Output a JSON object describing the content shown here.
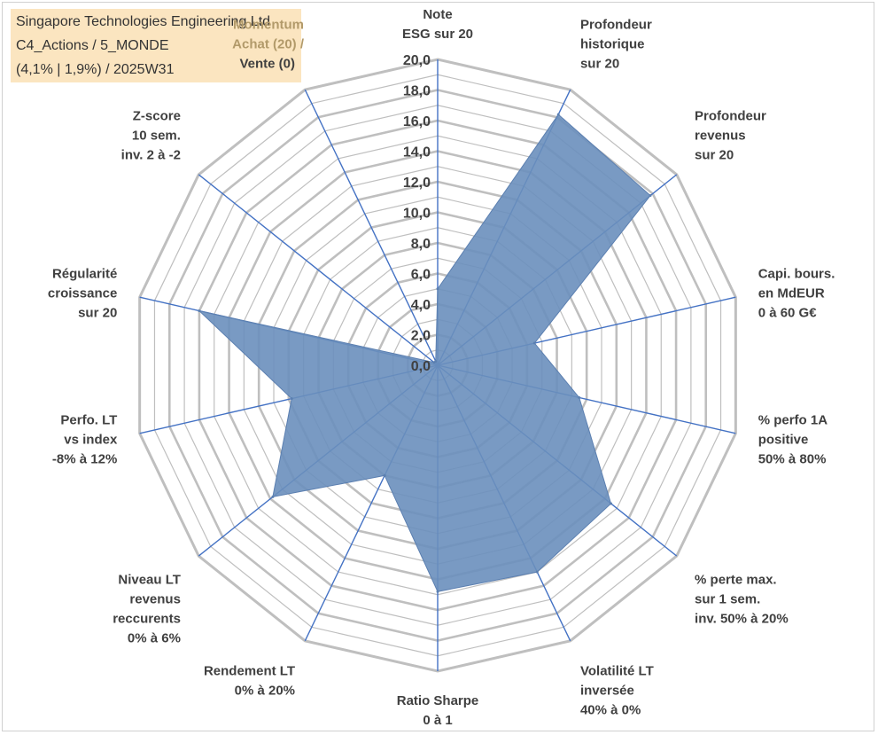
{
  "title_box": {
    "line1": "Singapore Technologies Engineering Ltd",
    "line2": "C4_Actions / 5_MONDE",
    "line3": "(4,1% | 1,9%) / 2025W31"
  },
  "chart_data": {
    "type": "radar",
    "title": "",
    "rmax": 20,
    "ticks": [
      "0,0",
      "2,0",
      "4,0",
      "6,0",
      "8,0",
      "10,0",
      "12,0",
      "14,0",
      "16,0",
      "18,0",
      "20,0"
    ],
    "tick_values": [
      0,
      2,
      4,
      6,
      8,
      10,
      12,
      14,
      16,
      18,
      20
    ],
    "grid": true,
    "fill_color": "#6a8fbd",
    "axis_color": "#4472c4",
    "grid_color": "#bfbfbf",
    "axes": [
      {
        "label": [
          "Note",
          "ESG sur 20"
        ],
        "value": 5.0
      },
      {
        "label": [
          "Profondeur",
          "historique",
          "sur 20"
        ],
        "value": 18.2
      },
      {
        "label": [
          "Profondeur",
          "revenus",
          "sur 20"
        ],
        "value": 17.8
      },
      {
        "label": [
          "Capi. bours.",
          "en MdEUR",
          "0 à 60 G€"
        ],
        "value": 6.5
      },
      {
        "label": [
          "% perfo 1A",
          "positive",
          "50% à 80%"
        ],
        "value": 9.5
      },
      {
        "label": [
          "% perte max.",
          "sur 1 sem.",
          "inv. 50% à 20%"
        ],
        "value": 14.5
      },
      {
        "label": [
          "Volatilité LT",
          "inversée",
          "40% à 0%"
        ],
        "value": 15.0
      },
      {
        "label": [
          "Ratio Sharpe",
          "0 à 1"
        ],
        "value": 14.8
      },
      {
        "label": [
          "Rendement LT",
          "0% à 20%"
        ],
        "value": 8.0
      },
      {
        "label": [
          "Niveau LT",
          "revenus",
          "reccurents",
          "0% à 6%"
        ],
        "value": 13.8
      },
      {
        "label": [
          "Perfo. LT",
          "vs index",
          "-8% à 12%"
        ],
        "value": 9.8
      },
      {
        "label": [
          "Régularité",
          "croissance",
          "sur 20"
        ],
        "value": 16.0
      },
      {
        "label": [
          "Z-score",
          "10 sem.",
          "inv. 2 à -2"
        ],
        "value": 0.3
      },
      {
        "label": [
          "Momentum",
          "Achat (20) /",
          "Vente (0)"
        ],
        "value": 0.3
      }
    ]
  }
}
